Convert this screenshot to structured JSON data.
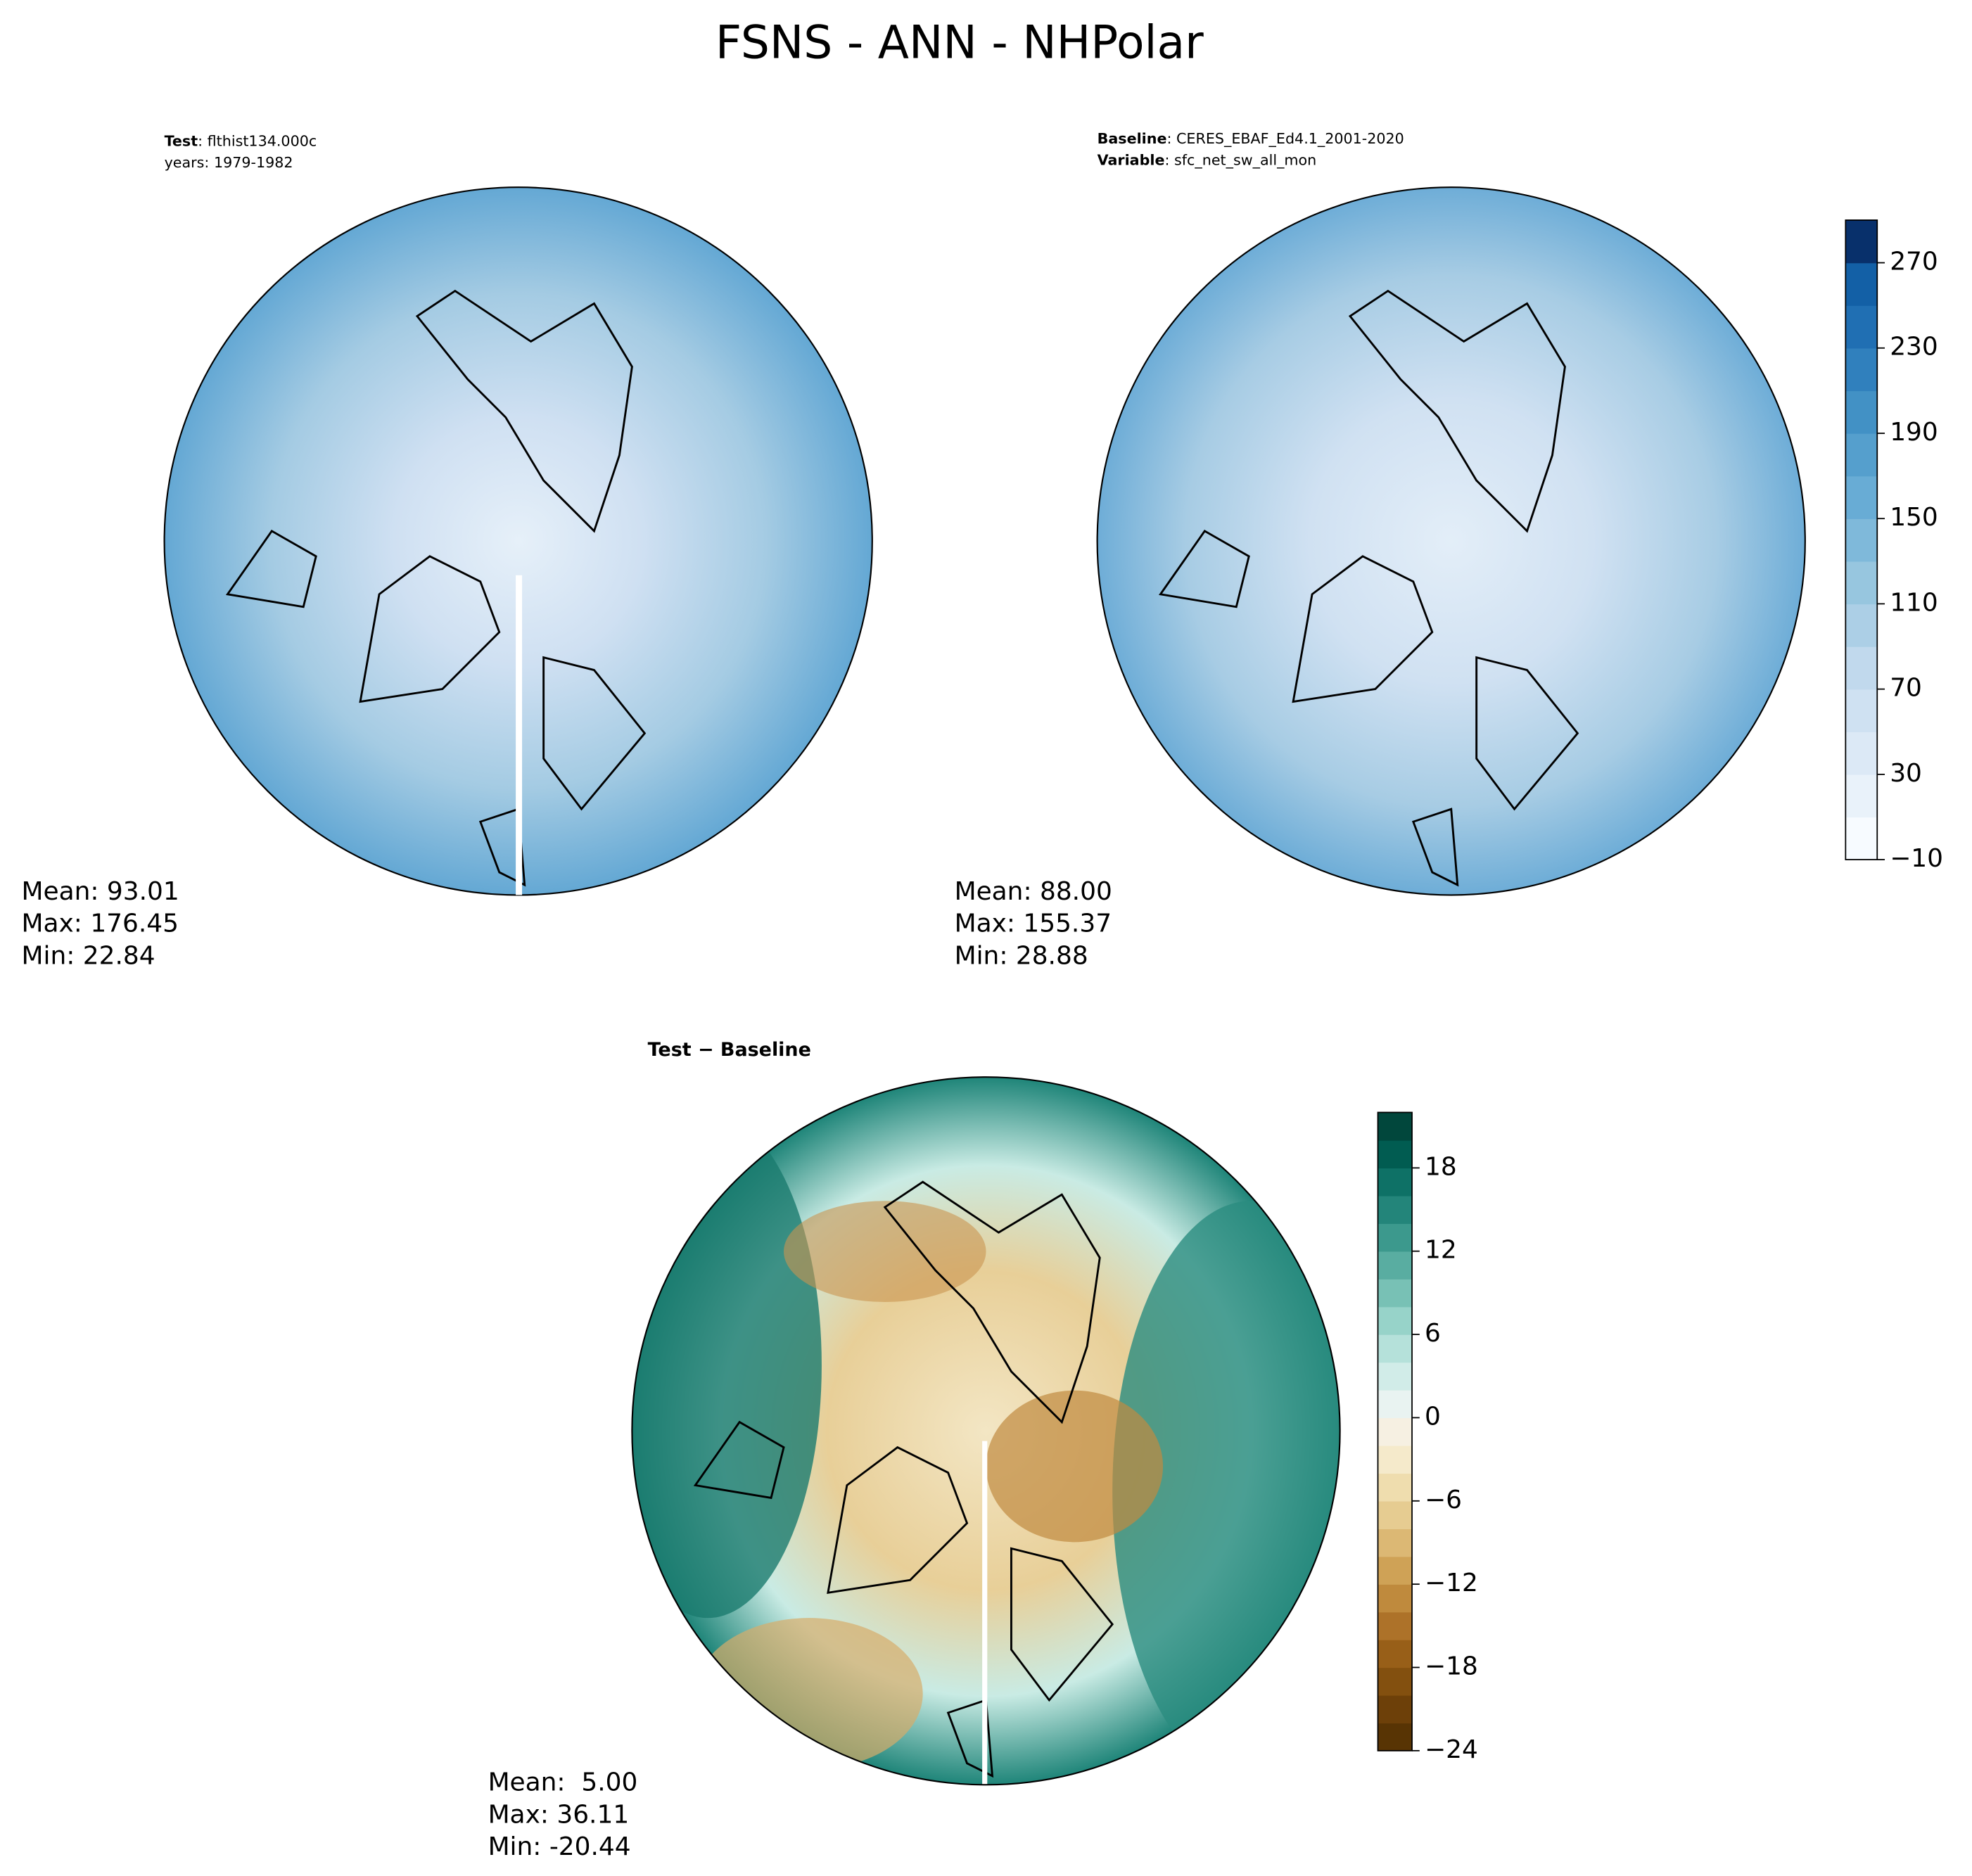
{
  "figure": {
    "title": "FSNS - ANN - NHPolar",
    "panels": [
      {
        "lines": [
          {
            "key": "Test",
            "text": ": flthist134.000c"
          },
          {
            "key": "",
            "text": "years: 1979-1982"
          }
        ],
        "stats": [
          "Mean: 93.01",
          "Max: 176.45",
          "Min: 22.84"
        ]
      },
      {
        "lines": [
          {
            "key": "Baseline",
            "text": ": CERES_EBAF_Ed4.1_2001-2020"
          },
          {
            "key": "Variable",
            "text": ": sfc_net_sw_all_mon"
          }
        ],
        "stats": [
          "Mean: 88.00",
          "Max: 155.37",
          "Min: 28.88"
        ]
      },
      {
        "heading": "Test − Baseline",
        "stats": [
          "Mean:  5.00",
          "Max: 36.11",
          "Min: -20.44"
        ]
      }
    ],
    "colorbars": [
      {
        "lim": [
          -10,
          290
        ],
        "ticks": [
          {
            "value": -10,
            "label": "−10"
          },
          30,
          70,
          110,
          150,
          190,
          230,
          270
        ],
        "colors": [
          "#f7fbff",
          "#e9f2fa",
          "#dce9f6",
          "#cfe1f2",
          "#c1d9ed",
          "#accfe6",
          "#97c6df",
          "#7fb9da",
          "#68acd5",
          "#559fcd",
          "#4291c5",
          "#3080bd",
          "#206fb3",
          "#1360a6",
          "#08306b"
        ]
      },
      {
        "lim": [
          -24,
          22
        ],
        "ticks": [
          {
            "value": -24,
            "label": "−24"
          },
          {
            "value": -18,
            "label": "−18"
          },
          {
            "value": -12,
            "label": "−12"
          },
          {
            "value": -6,
            "label": "−6"
          },
          0,
          6,
          12,
          18
        ],
        "colors": [
          "#583404",
          "#6d4009",
          "#83500f",
          "#985f18",
          "#ad7229",
          "#bf8a3d",
          "#cfa256",
          "#dcb874",
          "#e6cc91",
          "#efddae",
          "#f5eacb",
          "#f6f0e2",
          "#e9f3f1",
          "#d1ece8",
          "#b5e1da",
          "#97d3c9",
          "#78c1b5",
          "#59ada1",
          "#3c998d",
          "#23857a",
          "#0e7166",
          "#015c51",
          "#01473c"
        ]
      }
    ]
  }
}
